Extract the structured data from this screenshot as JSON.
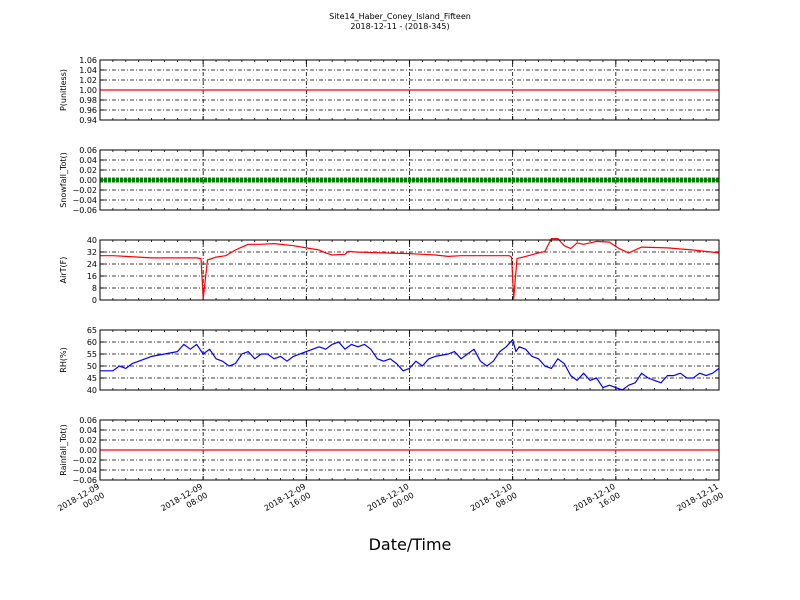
{
  "figure": {
    "title_line1": "Site14_Haber_Coney_Island_Fifteen",
    "title_line2": "2018-12-11 - (2018-345)",
    "xlabel": "Date/Time",
    "x_ticks": [
      {
        "l1": "2018-12-09",
        "l2": "00:00"
      },
      {
        "l1": "2018-12-09",
        "l2": "08:00"
      },
      {
        "l1": "2018-12-09",
        "l2": "16:00"
      },
      {
        "l1": "2018-12-10",
        "l2": "00:00"
      },
      {
        "l1": "2018-12-10",
        "l2": "08:00"
      },
      {
        "l1": "2018-12-10",
        "l2": "16:00"
      },
      {
        "l1": "2018-12-11",
        "l2": "00:00"
      }
    ],
    "xlim": [
      "2018-12-09 00:00",
      "2018-12-11 00:00"
    ]
  },
  "chart_data": [
    {
      "type": "line",
      "ylabel": "P(unitless)",
      "ylim": [
        0.94,
        1.06
      ],
      "yticks": [
        "0.94",
        "0.96",
        "0.98",
        "1.00",
        "1.02",
        "1.04",
        "1.06"
      ],
      "grid": true,
      "series": [
        {
          "color": "#ff0000",
          "style": "line",
          "points": [
            [
              "2018-12-09 00:00",
              1.0
            ],
            [
              "2018-12-11 00:00",
              1.0
            ]
          ]
        }
      ]
    },
    {
      "type": "line",
      "ylabel": "Snowfall_Tot()",
      "ylim": [
        -0.06,
        0.06
      ],
      "yticks": [
        "−0.06",
        "−0.04",
        "−0.02",
        "0.00",
        "0.02",
        "0.04",
        "0.06"
      ],
      "grid": true,
      "series": [
        {
          "color": "#008000",
          "style": "thick",
          "points": [
            [
              "2018-12-09 00:00",
              0.0
            ],
            [
              "2018-12-11 00:00",
              0.0
            ]
          ]
        }
      ]
    },
    {
      "type": "line",
      "ylabel": "AirT(F)",
      "ylim": [
        0,
        42
      ],
      "yticks": [
        "0",
        "8",
        "16",
        "24",
        "32",
        "40"
      ],
      "grid": true,
      "series": [
        {
          "color": "#ff0000",
          "style": "line",
          "points": [
            [
              "2018-12-09 00:00",
              31
            ],
            [
              "2018-12-09 01:00",
              31
            ],
            [
              "2018-12-09 02:00",
              30.5
            ],
            [
              "2018-12-09 03:00",
              30
            ],
            [
              "2018-12-09 04:00",
              29.5
            ],
            [
              "2018-12-09 05:00",
              29.5
            ],
            [
              "2018-12-09 06:00",
              29.5
            ],
            [
              "2018-12-09 07:30",
              29.5
            ],
            [
              "2018-12-09 07:50",
              29
            ],
            [
              "2018-12-09 08:00",
              1
            ],
            [
              "2018-12-09 08:20",
              28
            ],
            [
              "2018-12-09 09:00",
              30
            ],
            [
              "2018-12-09 09:45",
              31
            ],
            [
              "2018-12-09 10:30",
              35
            ],
            [
              "2018-12-09 11:00",
              37
            ],
            [
              "2018-12-09 11:30",
              39
            ],
            [
              "2018-12-09 12:30",
              39
            ],
            [
              "2018-12-09 13:30",
              39.5
            ],
            [
              "2018-12-09 15:00",
              38
            ],
            [
              "2018-12-09 16:00",
              36.5
            ],
            [
              "2018-12-09 17:00",
              35
            ],
            [
              "2018-12-09 17:30",
              33
            ],
            [
              "2018-12-09 18:00",
              31.5
            ],
            [
              "2018-12-09 19:00",
              32
            ],
            [
              "2018-12-09 19:15",
              34
            ],
            [
              "2018-12-09 20:00",
              33.5
            ],
            [
              "2018-12-09 22:00",
              33
            ],
            [
              "2018-12-10 00:00",
              32.5
            ],
            [
              "2018-12-10 01:00",
              32
            ],
            [
              "2018-12-10 02:00",
              31.5
            ],
            [
              "2018-12-10 03:00",
              30.5
            ],
            [
              "2018-12-10 04:00",
              31
            ],
            [
              "2018-12-10 05:00",
              31
            ],
            [
              "2018-12-10 06:00",
              31
            ],
            [
              "2018-12-10 07:45",
              31
            ],
            [
              "2018-12-10 07:55",
              30
            ],
            [
              "2018-12-10 08:05",
              1
            ],
            [
              "2018-12-10 08:20",
              29
            ],
            [
              "2018-12-10 09:00",
              30.5
            ],
            [
              "2018-12-10 10:00",
              33
            ],
            [
              "2018-12-10 10:30",
              34
            ],
            [
              "2018-12-10 11:00",
              43
            ],
            [
              "2018-12-10 11:30",
              43
            ],
            [
              "2018-12-10 12:00",
              38
            ],
            [
              "2018-12-10 12:30",
              36
            ],
            [
              "2018-12-10 13:00",
              40
            ],
            [
              "2018-12-10 13:30",
              39
            ],
            [
              "2018-12-10 14:30",
              41
            ],
            [
              "2018-12-10 15:30",
              40.5
            ],
            [
              "2018-12-10 16:15",
              36
            ],
            [
              "2018-12-10 17:00",
              33
            ],
            [
              "2018-12-10 17:30",
              35
            ],
            [
              "2018-12-10 18:00",
              37
            ],
            [
              "2018-12-10 20:00",
              36.5
            ],
            [
              "2018-12-10 22:00",
              35
            ],
            [
              "2018-12-11 00:00",
              33
            ]
          ]
        }
      ]
    },
    {
      "type": "line",
      "ylabel": "RH(%)",
      "ylim": [
        40,
        65
      ],
      "yticks": [
        "40",
        "45",
        "50",
        "55",
        "60",
        "65"
      ],
      "grid": true,
      "series": [
        {
          "color": "#0000ff",
          "style": "line",
          "points": [
            [
              "2018-12-09 00:00",
              48
            ],
            [
              "2018-12-09 01:00",
              48
            ],
            [
              "2018-12-09 01:30",
              50
            ],
            [
              "2018-12-09 02:00",
              49
            ],
            [
              "2018-12-09 02:30",
              51
            ],
            [
              "2018-12-09 03:00",
              52
            ],
            [
              "2018-12-09 04:00",
              54
            ],
            [
              "2018-12-09 05:00",
              55
            ],
            [
              "2018-12-09 06:00",
              56
            ],
            [
              "2018-12-09 06:30",
              59
            ],
            [
              "2018-12-09 07:00",
              57
            ],
            [
              "2018-12-09 07:30",
              59
            ],
            [
              "2018-12-09 08:00",
              55
            ],
            [
              "2018-12-09 08:30",
              57
            ],
            [
              "2018-12-09 09:00",
              53
            ],
            [
              "2018-12-09 09:30",
              52
            ],
            [
              "2018-12-09 10:00",
              50
            ],
            [
              "2018-12-09 10:30",
              51
            ],
            [
              "2018-12-09 11:00",
              55
            ],
            [
              "2018-12-09 11:30",
              56
            ],
            [
              "2018-12-09 12:00",
              53
            ],
            [
              "2018-12-09 12:30",
              55
            ],
            [
              "2018-12-09 13:00",
              55
            ],
            [
              "2018-12-09 13:30",
              53
            ],
            [
              "2018-12-09 14:00",
              54
            ],
            [
              "2018-12-09 14:30",
              52
            ],
            [
              "2018-12-09 15:00",
              54
            ],
            [
              "2018-12-09 16:00",
              56
            ],
            [
              "2018-12-09 17:00",
              58
            ],
            [
              "2018-12-09 17:30",
              57
            ],
            [
              "2018-12-09 18:00",
              59
            ],
            [
              "2018-12-09 18:30",
              60
            ],
            [
              "2018-12-09 19:00",
              57
            ],
            [
              "2018-12-09 19:30",
              59
            ],
            [
              "2018-12-09 20:00",
              58
            ],
            [
              "2018-12-09 20:30",
              59
            ],
            [
              "2018-12-09 21:00",
              57
            ],
            [
              "2018-12-09 21:30",
              53
            ],
            [
              "2018-12-09 22:00",
              52
            ],
            [
              "2018-12-09 22:30",
              53
            ],
            [
              "2018-12-09 23:00",
              51
            ],
            [
              "2018-12-09 23:30",
              48
            ],
            [
              "2018-12-10 00:00",
              49
            ],
            [
              "2018-12-10 00:30",
              52
            ],
            [
              "2018-12-10 01:00",
              50
            ],
            [
              "2018-12-10 01:30",
              53
            ],
            [
              "2018-12-10 02:00",
              54
            ],
            [
              "2018-12-10 03:00",
              55
            ],
            [
              "2018-12-10 03:30",
              56
            ],
            [
              "2018-12-10 04:00",
              53
            ],
            [
              "2018-12-10 04:30",
              55
            ],
            [
              "2018-12-10 05:00",
              57
            ],
            [
              "2018-12-10 05:30",
              52
            ],
            [
              "2018-12-10 06:00",
              50
            ],
            [
              "2018-12-10 06:30",
              52
            ],
            [
              "2018-12-10 07:00",
              56
            ],
            [
              "2018-12-10 07:30",
              58
            ],
            [
              "2018-12-10 08:00",
              61
            ],
            [
              "2018-12-10 08:15",
              56
            ],
            [
              "2018-12-10 08:30",
              58
            ],
            [
              "2018-12-10 09:00",
              57
            ],
            [
              "2018-12-10 09:30",
              54
            ],
            [
              "2018-12-10 10:00",
              53
            ],
            [
              "2018-12-10 10:30",
              50
            ],
            [
              "2018-12-10 11:00",
              49
            ],
            [
              "2018-12-10 11:30",
              53
            ],
            [
              "2018-12-10 12:00",
              51
            ],
            [
              "2018-12-10 12:30",
              46
            ],
            [
              "2018-12-10 13:00",
              44
            ],
            [
              "2018-12-10 13:30",
              47
            ],
            [
              "2018-12-10 14:00",
              44
            ],
            [
              "2018-12-10 14:30",
              45
            ],
            [
              "2018-12-10 15:00",
              41
            ],
            [
              "2018-12-10 15:30",
              42
            ],
            [
              "2018-12-10 16:00",
              41
            ],
            [
              "2018-12-10 16:30",
              40
            ],
            [
              "2018-12-10 17:00",
              42
            ],
            [
              "2018-12-10 17:30",
              43
            ],
            [
              "2018-12-10 18:00",
              47
            ],
            [
              "2018-12-10 18:30",
              45
            ],
            [
              "2018-12-10 19:00",
              44
            ],
            [
              "2018-12-10 19:30",
              43
            ],
            [
              "2018-12-10 20:00",
              46
            ],
            [
              "2018-12-10 20:30",
              46
            ],
            [
              "2018-12-10 21:00",
              47
            ],
            [
              "2018-12-10 21:30",
              45
            ],
            [
              "2018-12-10 22:00",
              45
            ],
            [
              "2018-12-10 22:30",
              47
            ],
            [
              "2018-12-10 23:00",
              46
            ],
            [
              "2018-12-10 23:30",
              47
            ],
            [
              "2018-12-11 00:00",
              49
            ]
          ]
        }
      ]
    },
    {
      "type": "line",
      "ylabel": "Rainfall_Tot()",
      "ylim": [
        -0.06,
        0.06
      ],
      "yticks": [
        "−0.06",
        "−0.04",
        "−0.02",
        "0.00",
        "0.02",
        "0.04",
        "0.06"
      ],
      "grid": true,
      "series": [
        {
          "color": "#ff0000",
          "style": "line",
          "points": [
            [
              "2018-12-09 00:00",
              0.0
            ],
            [
              "2018-12-11 00:00",
              0.0
            ]
          ]
        }
      ]
    }
  ]
}
